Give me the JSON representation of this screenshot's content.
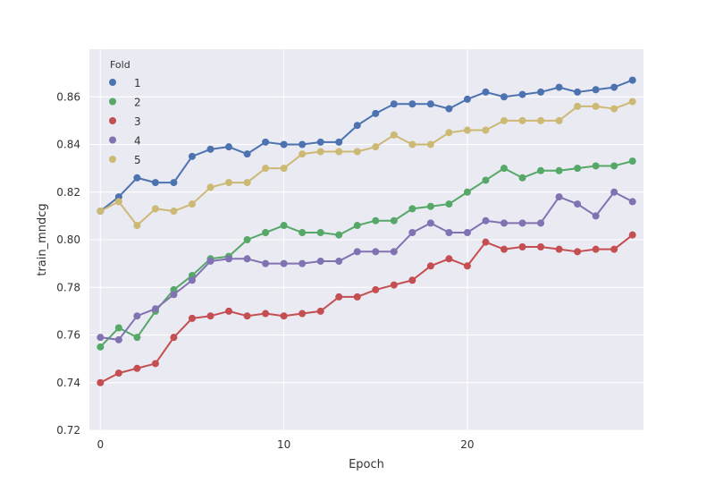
{
  "chart_data": {
    "type": "line",
    "xlabel": "Epoch",
    "ylabel": "train_mndcg",
    "ylim": [
      0.72,
      0.88
    ],
    "xlim": [
      -0.6,
      29.6
    ],
    "yticks": [
      0.72,
      0.74,
      0.76,
      0.78,
      0.8,
      0.82,
      0.84,
      0.86
    ],
    "ytick_labels": [
      "0.72",
      "0.74",
      "0.76",
      "0.78",
      "0.80",
      "0.82",
      "0.84",
      "0.86"
    ],
    "xticks": [
      0,
      10,
      20
    ],
    "xtick_labels": [
      "0",
      "10",
      "20"
    ],
    "grid": true,
    "legend": {
      "title": "Fold",
      "position": "top-left"
    },
    "x": [
      0,
      1,
      2,
      3,
      4,
      5,
      6,
      7,
      8,
      9,
      10,
      11,
      12,
      13,
      14,
      15,
      16,
      17,
      18,
      19,
      20,
      21,
      22,
      23,
      24,
      25,
      26,
      27,
      28,
      29
    ],
    "series": [
      {
        "name": "1",
        "color": "#4c72b0",
        "values": [
          0.812,
          0.818,
          0.826,
          0.824,
          0.824,
          0.835,
          0.838,
          0.839,
          0.836,
          0.841,
          0.84,
          0.84,
          0.841,
          0.841,
          0.848,
          0.853,
          0.857,
          0.857,
          0.857,
          0.855,
          0.859,
          0.862,
          0.86,
          0.861,
          0.862,
          0.864,
          0.862,
          0.863,
          0.864,
          0.867
        ]
      },
      {
        "name": "2",
        "color": "#55a868",
        "values": [
          0.755,
          0.763,
          0.759,
          0.77,
          0.779,
          0.785,
          0.792,
          0.793,
          0.8,
          0.803,
          0.806,
          0.803,
          0.803,
          0.802,
          0.806,
          0.808,
          0.808,
          0.813,
          0.814,
          0.815,
          0.82,
          0.825,
          0.83,
          0.826,
          0.829,
          0.829,
          0.83,
          0.831,
          0.831,
          0.833
        ]
      },
      {
        "name": "3",
        "color": "#c44e52",
        "values": [
          0.74,
          0.744,
          0.746,
          0.748,
          0.759,
          0.767,
          0.768,
          0.77,
          0.768,
          0.769,
          0.768,
          0.769,
          0.77,
          0.776,
          0.776,
          0.779,
          0.781,
          0.783,
          0.789,
          0.792,
          0.789,
          0.799,
          0.796,
          0.797,
          0.797,
          0.796,
          0.795,
          0.796,
          0.796,
          0.802
        ]
      },
      {
        "name": "4",
        "color": "#8172b2",
        "values": [
          0.759,
          0.758,
          0.768,
          0.771,
          0.777,
          0.783,
          0.791,
          0.792,
          0.792,
          0.79,
          0.79,
          0.79,
          0.791,
          0.791,
          0.795,
          0.795,
          0.795,
          0.803,
          0.807,
          0.803,
          0.803,
          0.808,
          0.807,
          0.807,
          0.807,
          0.818,
          0.815,
          0.81,
          0.82,
          0.816
        ]
      },
      {
        "name": "5",
        "color": "#ccb974",
        "values": [
          0.812,
          0.816,
          0.806,
          0.813,
          0.812,
          0.815,
          0.822,
          0.824,
          0.824,
          0.83,
          0.83,
          0.836,
          0.837,
          0.837,
          0.837,
          0.839,
          0.844,
          0.84,
          0.84,
          0.845,
          0.846,
          0.846,
          0.85,
          0.85,
          0.85,
          0.85,
          0.856,
          0.856,
          0.855,
          0.858
        ]
      }
    ]
  }
}
